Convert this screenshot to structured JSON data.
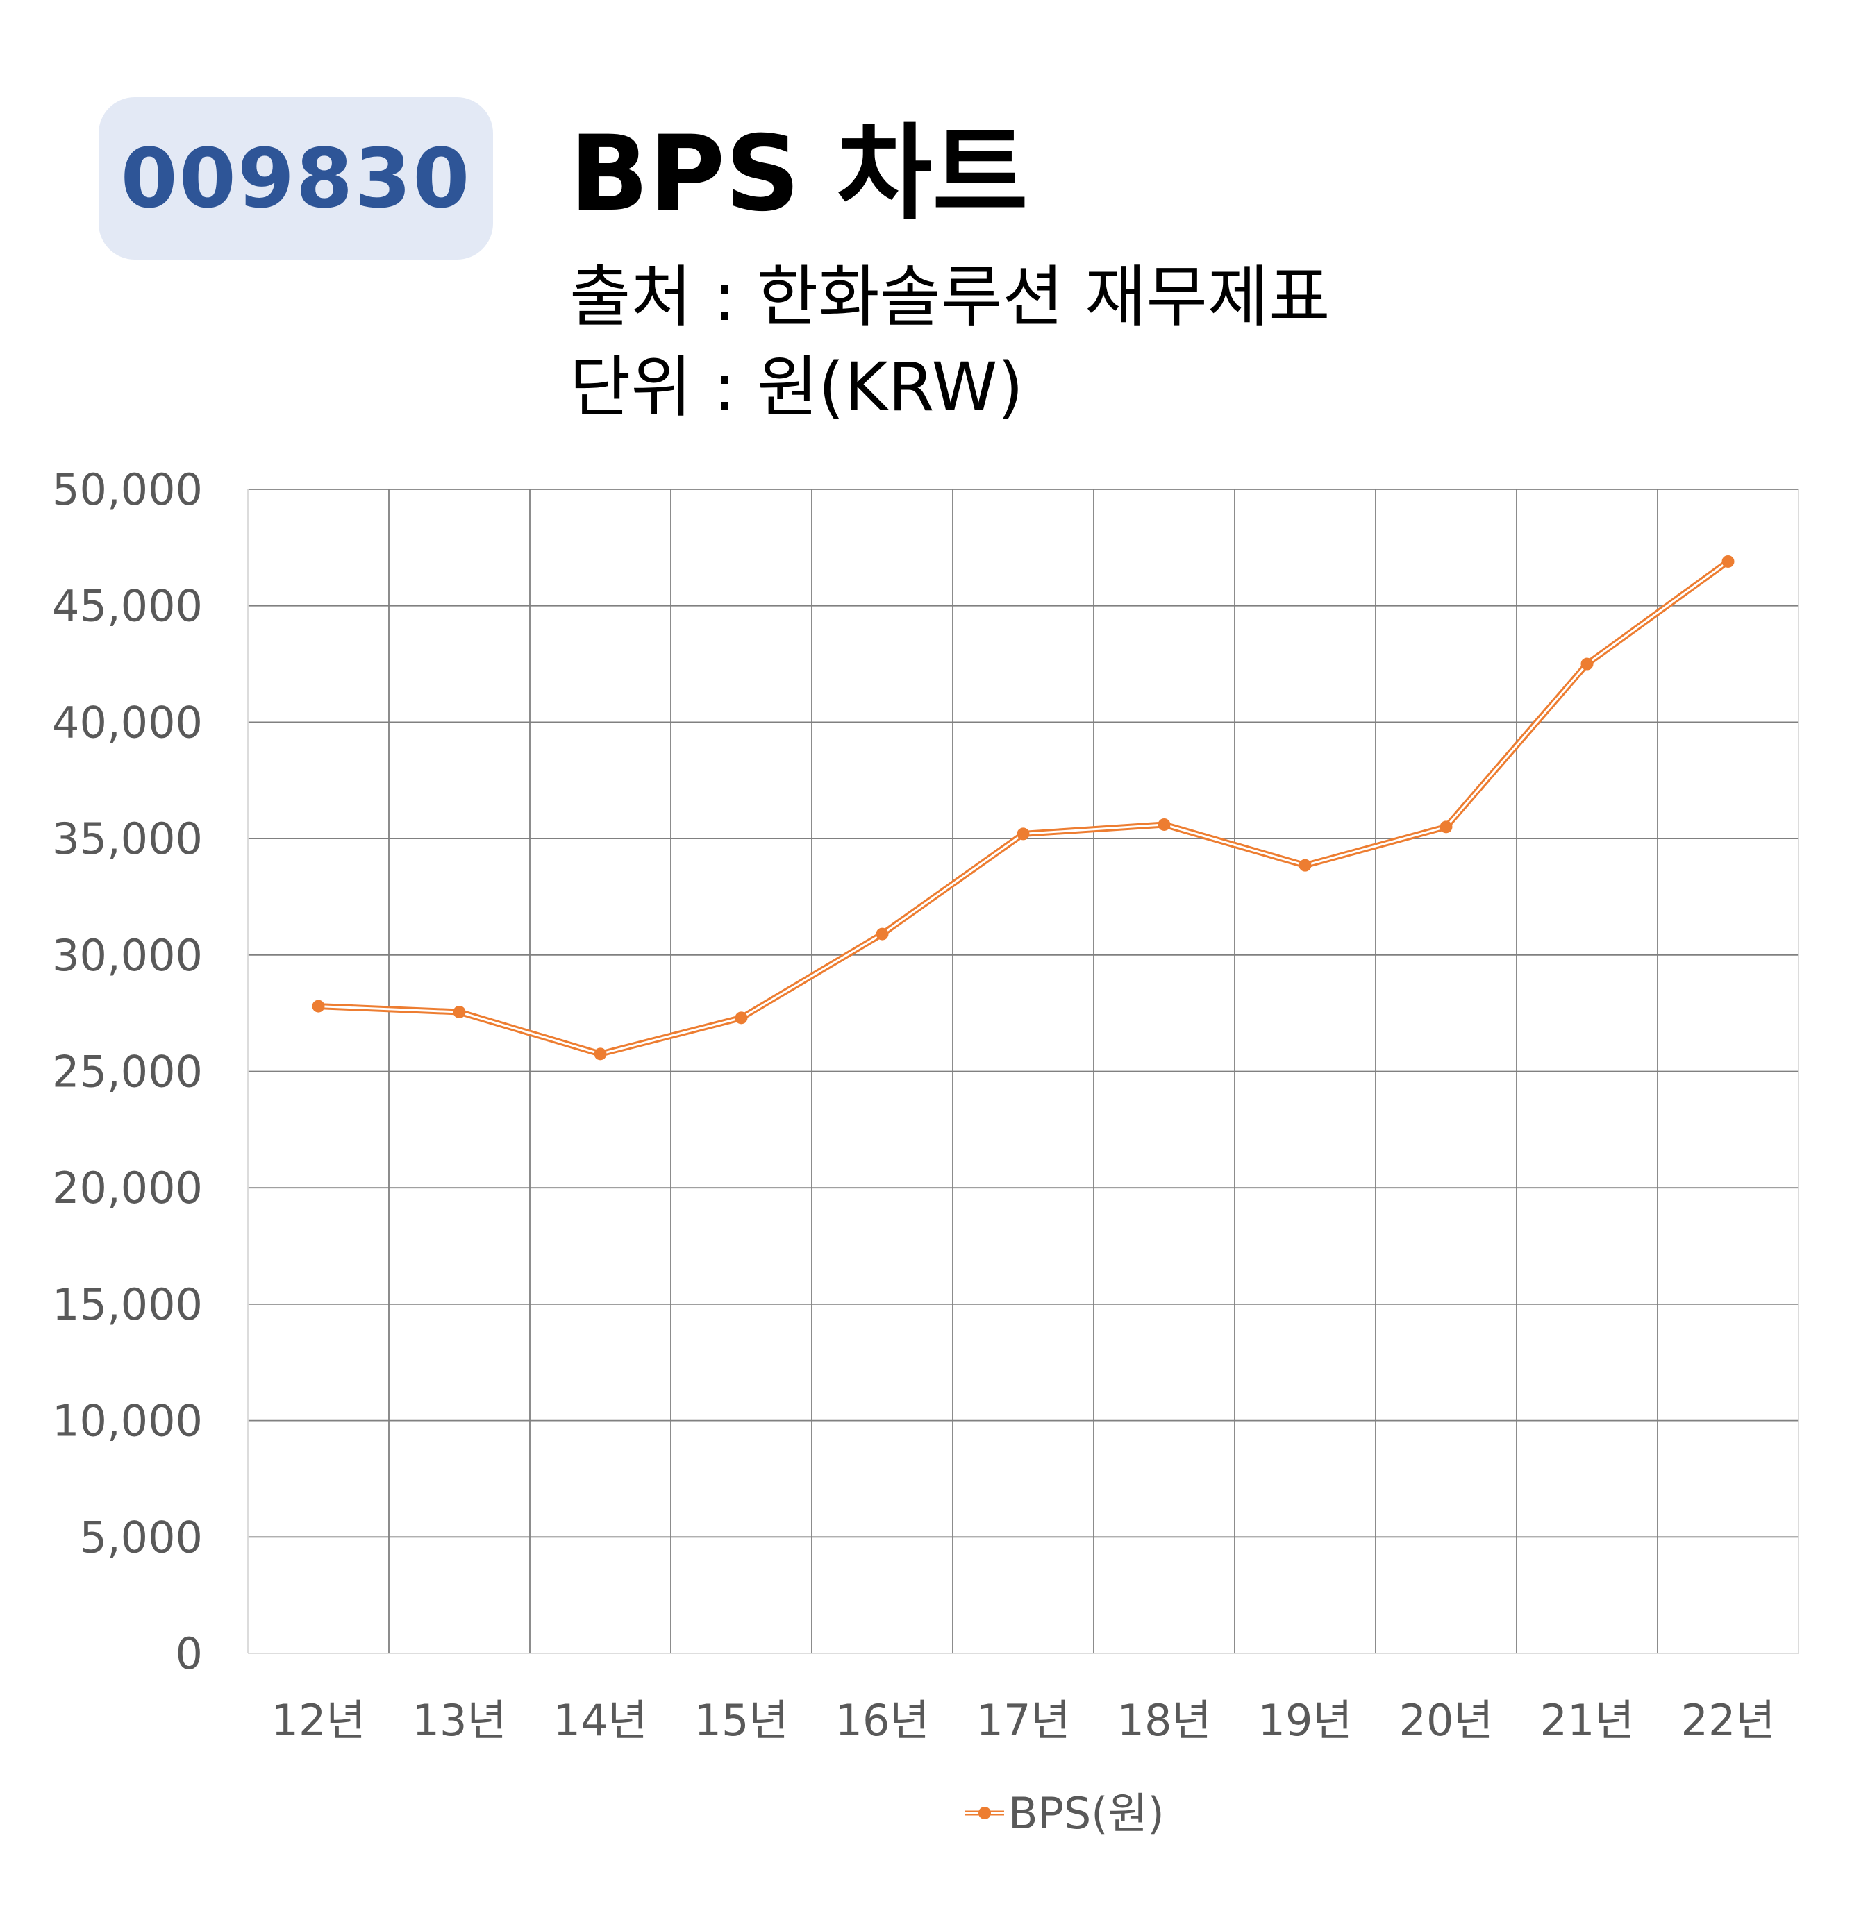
{
  "header": {
    "code": "009830",
    "title": "BPS 차트",
    "source": "출처 : 한화솔루션 재무제표",
    "unit": "단위 : 원(KRW)"
  },
  "colors": {
    "badge_bg": "#e3e9f5",
    "badge_text": "#2e5597",
    "series": "#ed7d31",
    "grid": "#808080",
    "tick_text": "#595959"
  },
  "chart_data": {
    "type": "line",
    "title": "BPS 차트",
    "xlabel": "",
    "ylabel": "",
    "categories": [
      "12년",
      "13년",
      "14년",
      "15년",
      "16년",
      "17년",
      "18년",
      "19년",
      "20년",
      "21년",
      "22년"
    ],
    "series": [
      {
        "name": "BPS(원)",
        "values": [
          27800,
          27550,
          25750,
          27300,
          30900,
          35200,
          35600,
          33850,
          35500,
          42500,
          46900
        ]
      }
    ],
    "ylim": [
      0,
      50000
    ],
    "ytick_labels": [
      "0",
      "5,000",
      "10,000",
      "15,000",
      "20,000",
      "25,000",
      "30,000",
      "35,000",
      "40,000",
      "45,000",
      "50,000"
    ],
    "grid": true,
    "legend_position": "bottom"
  }
}
